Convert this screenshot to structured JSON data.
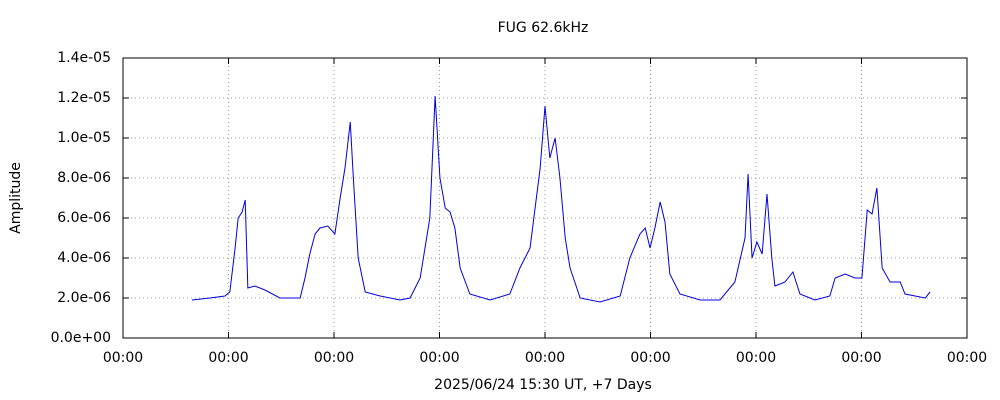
{
  "chart_data": {
    "type": "line",
    "title": "FUG 62.6kHz",
    "x_label": "2025/06/24 15:30 UT, +7 Days",
    "y_label": "Amplitude",
    "x": [
      15.7,
      19.8,
      23.2,
      24.3,
      25.5,
      26.2,
      27.1,
      27.8,
      28.4,
      30.0,
      32.3,
      35.7,
      40.3,
      41.4,
      42.5,
      43.7,
      44.8,
      46.6,
      48.2,
      49.4,
      50.5,
      51.7,
      52.4,
      53.5,
      55.1,
      58.5,
      63.0,
      65.3,
      67.6,
      68.7,
      69.8,
      71.0,
      72.1,
      73.3,
      74.4,
      75.5,
      76.7,
      78.9,
      83.5,
      88.0,
      90.3,
      92.6,
      94.9,
      96.0,
      97.1,
      98.3,
      99.4,
      100.6,
      101.7,
      104.0,
      108.5,
      113.1,
      115.3,
      117.6,
      118.8,
      119.9,
      121.0,
      122.2,
      123.3,
      124.4,
      126.7,
      131.3,
      135.8,
      139.2,
      141.5,
      142.2,
      143.1,
      144.2,
      145.4,
      146.5,
      147.6,
      148.3,
      150.6,
      152.4,
      154.0,
      157.4,
      160.8,
      162.0,
      164.3,
      166.5,
      168.1,
      169.3,
      170.4,
      171.5,
      172.7,
      174.5,
      176.8,
      177.9,
      180.2,
      182.5,
      183.6
    ],
    "series": [
      {
        "color": "#0000dd",
        "values": [
          1.9e-06,
          2e-06,
          2.1e-06,
          2.3e-06,
          4.5e-06,
          6e-06,
          6.3e-06,
          6.9e-06,
          2.5e-06,
          2.6e-06,
          2.4e-06,
          2e-06,
          2e-06,
          3e-06,
          4.2e-06,
          5.2e-06,
          5.5e-06,
          5.6e-06,
          5.2e-06,
          7e-06,
          8.5e-06,
          1.08e-05,
          8e-06,
          4e-06,
          2.3e-06,
          2.1e-06,
          1.9e-06,
          2e-06,
          3e-06,
          4.5e-06,
          6e-06,
          1.21e-05,
          8e-06,
          6.5e-06,
          6.3e-06,
          5.5e-06,
          3.5e-06,
          2.2e-06,
          1.9e-06,
          2.2e-06,
          3.5e-06,
          4.5e-06,
          8.5e-06,
          1.16e-05,
          9e-06,
          1e-05,
          8e-06,
          5e-06,
          3.5e-06,
          2e-06,
          1.8e-06,
          2.1e-06,
          4e-06,
          5.2e-06,
          5.5e-06,
          4.5e-06,
          5.5e-06,
          6.8e-06,
          5.8e-06,
          3.2e-06,
          2.2e-06,
          1.9e-06,
          1.9e-06,
          2.8e-06,
          5e-06,
          8.2e-06,
          4e-06,
          4.8e-06,
          4.2e-06,
          7.2e-06,
          4e-06,
          2.6e-06,
          2.8e-06,
          3.3e-06,
          2.2e-06,
          1.9e-06,
          2.1e-06,
          3e-06,
          3.2e-06,
          3e-06,
          3e-06,
          6.4e-06,
          6.2e-06,
          7.5e-06,
          3.5e-06,
          2.8e-06,
          2.8e-06,
          2.2e-06,
          2.1e-06,
          2e-06,
          2.3e-06
        ]
      }
    ],
    "xlim": [
      0,
      192
    ],
    "xticks": [
      {
        "value": 0,
        "label": "00:00"
      },
      {
        "value": 24,
        "label": "00:00"
      },
      {
        "value": 48,
        "label": "00:00"
      },
      {
        "value": 72,
        "label": "00:00"
      },
      {
        "value": 96,
        "label": "00:00"
      },
      {
        "value": 120,
        "label": "00:00"
      },
      {
        "value": 144,
        "label": "00:00"
      },
      {
        "value": 168,
        "label": "00:00"
      },
      {
        "value": 192,
        "label": "00:00"
      }
    ],
    "ylim": [
      0,
      1.4e-05
    ],
    "yticks": [
      {
        "value": 0,
        "label": "0.0e+00"
      },
      {
        "value": 2e-06,
        "label": "2.0e-06"
      },
      {
        "value": 4e-06,
        "label": "4.0e-06"
      },
      {
        "value": 6e-06,
        "label": "6.0e-06"
      },
      {
        "value": 8e-06,
        "label": "8.0e-06"
      },
      {
        "value": 1e-05,
        "label": "1.0e-05"
      },
      {
        "value": 1.2e-05,
        "label": "1.2e-05"
      },
      {
        "value": 1.4e-05,
        "label": "1.4e-05"
      }
    ],
    "grid": true
  }
}
